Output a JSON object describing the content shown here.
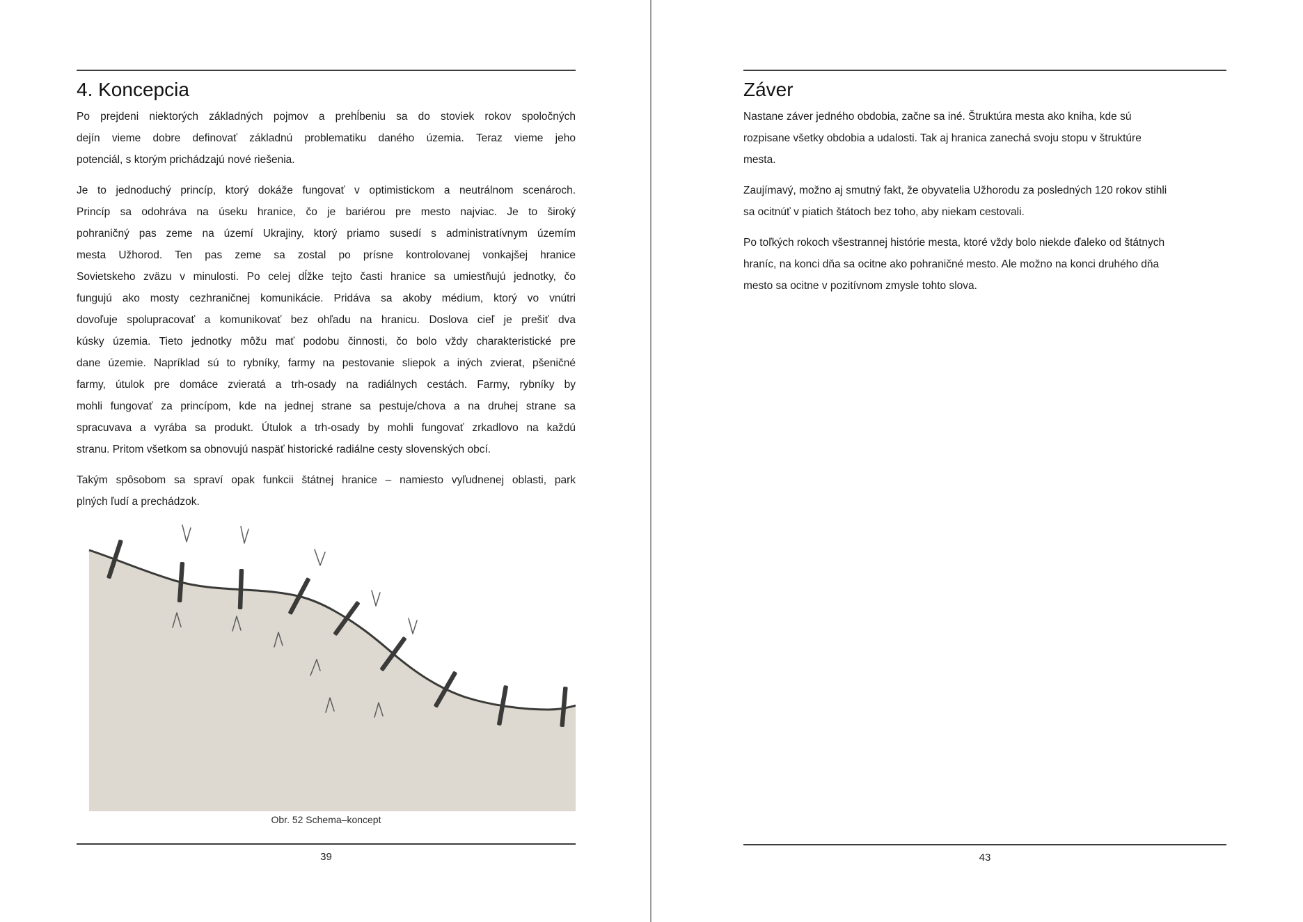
{
  "colors": {
    "rule": "#3c3c3c",
    "divider": "#9c9c9c",
    "text": "#1c1c1c"
  },
  "pages": {
    "left": {
      "heading": "4. Koncepcia",
      "paragraphs": [
        [
          "Po prejdeni niektorých základných pojmov a prehĺbeniu sa do stoviek rokov spoločných",
          "dejín vieme dobre definovať základnú problematiku daného územia. Teraz vieme jeho",
          "potenciál, s ktorým prichádzajú nové riešenia."
        ],
        [
          "Je to jednoduchý princíp, ktorý dokáže fungovať v optimistickom a neutrálnom scenároch.",
          "Princíp sa odohráva na úseku hranice, čo je bariérou pre mesto najviac. Je to široký",
          "pohraničný pas zeme na území Ukrajiny, ktorý priamo susedí s administratívnym územím",
          "mesta Užhorod. Ten pas zeme sa zostal po prísne kontrolovanej vonkajšej hranice",
          "Sovietskeho zväzu v minulosti. Po celej dĺžke tejto časti hranice sa umiestňujú jednotky, čo",
          "fungujú ako mosty cezhraničnej komunikácie. Pridáva sa akoby médium, ktorý vo vnútri",
          "dovoľuje spolupracovať a komunikovať bez ohľadu na hranicu. Doslova cieľ je prešiť dva",
          "kúsky územia. Tieto jednotky môžu mať podobu činnosti, čo bolo vždy charakteristické pre",
          "dane územie. Napríklad sú to rybníky, farmy na pestovanie sliepok a iných zvierat, pšeničné",
          "farmy, útulok pre domáce zvieratá a trh-osady na radiálnych cestách. Farmy, rybníky by",
          "mohli fungovať za princípom, kde na jednej strane sa pestuje/chova a na druhej strane sa",
          "spracuvava a vyrába sa produkt. Útulok a trh-osady by mohli fungovať zrkadlovo na každú",
          "stranu. Pritom všetkom sa obnovujú naspäť historické radiálne cesty slovenských obcí."
        ],
        [
          "Takým spôsobom sa spraví opak funkcii štátnej hranice – namiesto vyľudnenej oblasti, park",
          "plných ľudí a prechádzok."
        ]
      ],
      "figure": {
        "caption": "Obr. 52 Schema–koncept",
        "fill_color": "#ddd9d0",
        "line_color": "#3a3a38",
        "mark_color": "#5c5c5c"
      },
      "page_number": "39"
    },
    "right": {
      "heading": "Záver",
      "paragraphs": [
        [
          "Nastane záver jedného obdobia, začne sa iné. Štruktúra mesta ako kniha, kde sú",
          "rozpisane všetky obdobia a udalosti. Tak aj hranica zanechá svoju stopu v štruktúre",
          "mesta."
        ],
        [
          "Zaujímavý, možno aj smutný fakt, že obyvatelia Užhorodu za posledných 120 rokov stihli",
          "sa ocitnúť v piatich štátoch bez toho, aby niekam cestovali."
        ],
        [
          "Po toľkých rokoch všestrannej histórie mesta, ktoré vždy bolo niekde ďaleko od štátnych",
          "hraníc, na konci dňa sa ocitne ako pohraničné mesto. Ale možno na konci druhého dňa",
          "mesto sa ocitne v pozitívnom zmysle tohto slova."
        ]
      ],
      "page_number": "43"
    }
  }
}
